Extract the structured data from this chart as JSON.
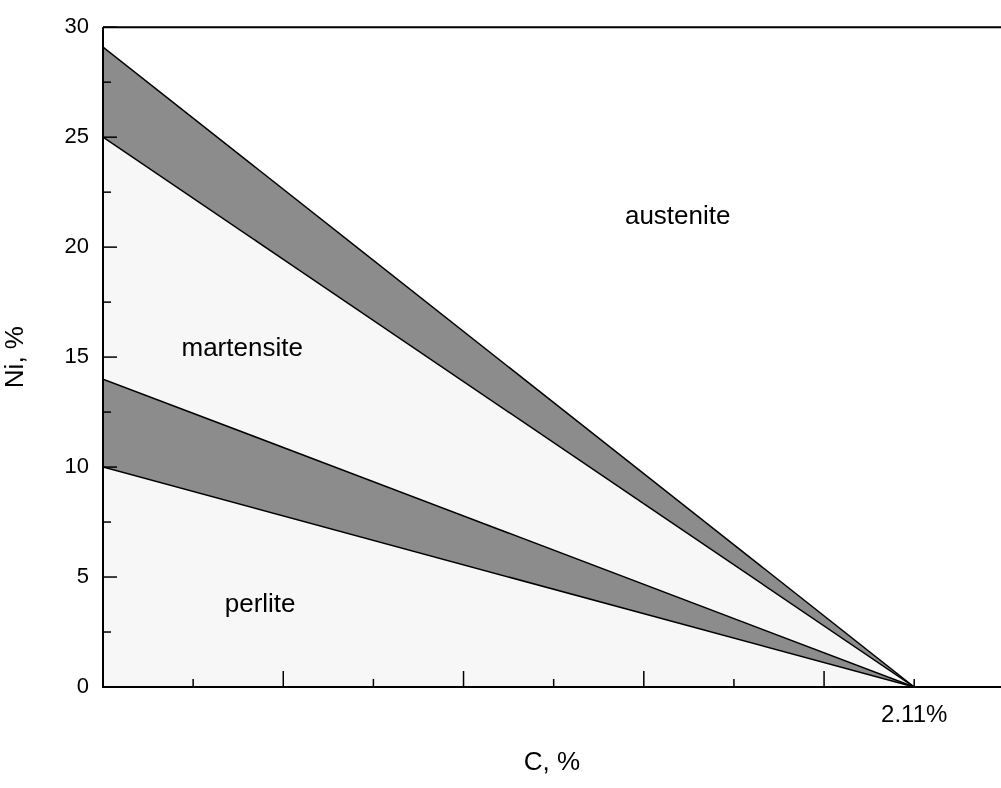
{
  "chart_data": {
    "type": "area",
    "stacked": true,
    "xlabel": "C, %",
    "ylabel": "Ni, %",
    "categories": [
      null,
      "2.11%"
    ],
    "ylim": [
      0,
      30
    ],
    "yticks": [
      0,
      5,
      10,
      15,
      20,
      25,
      30
    ],
    "series": [
      {
        "name": "perlite",
        "color": "#f7f7f7",
        "values": [
          10,
          0
        ]
      },
      {
        "color": "#8c8c8c",
        "values": [
          4,
          0
        ]
      },
      {
        "name": "martensite",
        "color": "#f7f7f7",
        "values": [
          11,
          0
        ]
      },
      {
        "color": "#8c8c8c",
        "values": [
          4.1,
          0
        ]
      }
    ],
    "annotations": [
      "austenite"
    ],
    "grid": false,
    "legend": false
  }
}
